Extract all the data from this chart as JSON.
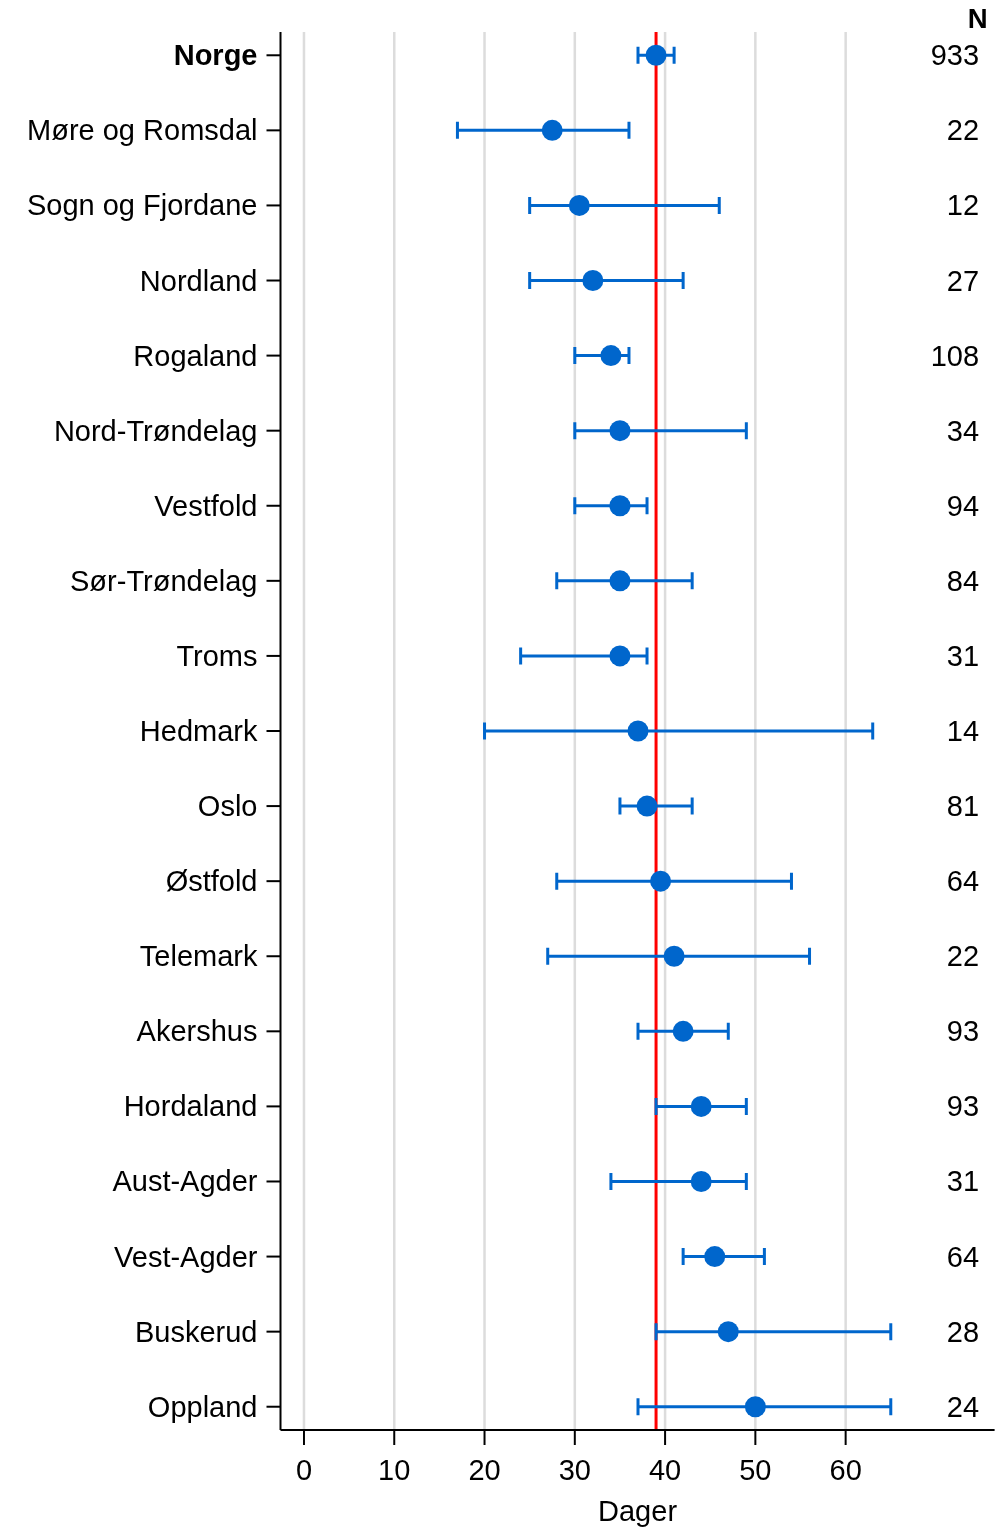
{
  "chart_data": {
    "type": "scatter",
    "orientation": "horizontal",
    "xlabel": "Dager",
    "categories": [
      "Norge",
      "Møre og Romsdal",
      "Sogn og Fjordane",
      "Nordland",
      "Rogaland",
      "Nord-Trøndelag",
      "Vestfold",
      "Sør-Trøndelag",
      "Troms",
      "Hedmark",
      "Oslo",
      "Østfold",
      "Telemark",
      "Akershus",
      "Hordaland",
      "Aust-Agder",
      "Vest-Agder",
      "Buskerud",
      "Oppland"
    ],
    "series": [
      {
        "color": "#0066cc",
        "values": [
          39,
          27.5,
          30.5,
          32,
          34,
          35,
          35,
          35,
          35,
          37,
          38,
          39.5,
          41,
          42,
          44,
          44,
          45.5,
          47,
          50
        ],
        "errors": [
          [
            37,
            41
          ],
          [
            17,
            36
          ],
          [
            25,
            46
          ],
          [
            25,
            42
          ],
          [
            30,
            36
          ],
          [
            30,
            49
          ],
          [
            30,
            38
          ],
          [
            28,
            43
          ],
          [
            24,
            38
          ],
          [
            20,
            63
          ],
          [
            35,
            43
          ],
          [
            28,
            54
          ],
          [
            27,
            56
          ],
          [
            37,
            47
          ],
          [
            39,
            49
          ],
          [
            34,
            49
          ],
          [
            42,
            51
          ],
          [
            39,
            65
          ],
          [
            37,
            65
          ]
        ]
      }
    ],
    "marker": "circle",
    "xlim": [
      -2.6,
      76.5
    ],
    "xticks": [
      0,
      10,
      20,
      30,
      40,
      50,
      60
    ],
    "grid": "x",
    "ref_lines": [
      {
        "axis": "x",
        "value": 39,
        "color": "#ff0000"
      }
    ],
    "annotations": [
      "N",
      "933",
      "22",
      "12",
      "27",
      "108",
      "34",
      "94",
      "84",
      "31",
      "14",
      "81",
      "64",
      "22",
      "93",
      "93",
      "31",
      "64",
      "28",
      "24"
    ]
  }
}
